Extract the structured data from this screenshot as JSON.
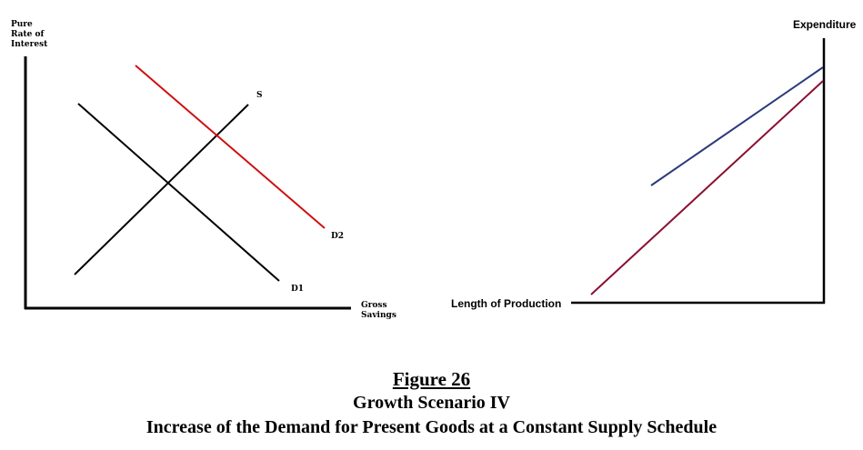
{
  "left_diagram": {
    "y_axis_label_lines": [
      "Pure",
      "Rate of",
      "Interest"
    ],
    "x_axis_label_lines": [
      "Gross",
      "Savings"
    ],
    "curve_labels": {
      "supply": "S",
      "demand_initial": "D1",
      "demand_new": "D2"
    }
  },
  "right_diagram": {
    "y_axis_label": "Expenditure",
    "x_axis_label": "Length of Production"
  },
  "colors": {
    "axis": "#000000",
    "supply": "#000000",
    "d1": "#000000",
    "d2": "#d01010",
    "upper_line": "#2a3a7a",
    "lower_line": "#8a1030"
  },
  "caption": {
    "figure_number": "Figure 26",
    "subtitle": "Growth Scenario IV",
    "description": "Increase of the Demand for Present Goods at a Constant Supply Schedule"
  }
}
